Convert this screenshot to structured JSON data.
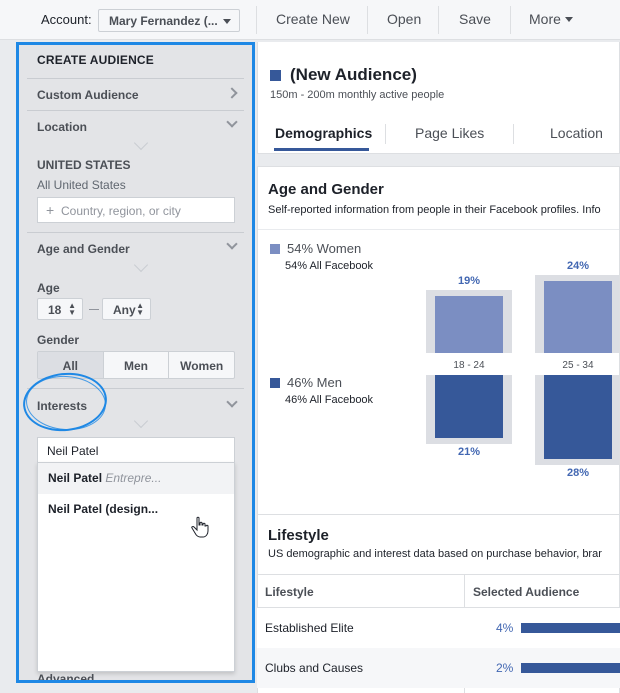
{
  "topbar": {
    "account_label": "Account:",
    "account_value": "Mary Fernandez (...",
    "create_new": "Create New",
    "open": "Open",
    "save": "Save",
    "more": "More"
  },
  "left_panel": {
    "title": "CREATE AUDIENCE",
    "custom_audience": "Custom Audience",
    "location_header": "Location",
    "country": "UNITED STATES",
    "country_sub": "All United States",
    "location_placeholder": "Country, region, or city",
    "age_gender_header": "Age and Gender",
    "age_label": "Age",
    "age_min": "18",
    "age_max": "Any",
    "gender_label": "Gender",
    "gender_options": [
      "All",
      "Men",
      "Women"
    ],
    "gender_selected": "All",
    "interests_header": "Interests",
    "interests_query": "Neil Patel",
    "suggestions": [
      {
        "name": "Neil Patel",
        "detail": "Entrepre...",
        "highlighted": true
      },
      {
        "name": "Neil Patel",
        "detail": "(design...",
        "highlighted": false
      }
    ],
    "advanced": "Advanced",
    "accent_color": "#1e88e5"
  },
  "audience": {
    "title": "(New Audience)",
    "subtitle": "150m - 200m monthly active people",
    "tabs": [
      "Demographics",
      "Page Likes",
      "Location"
    ],
    "active_tab": "Demographics"
  },
  "age_gender_section": {
    "title": "Age and Gender",
    "subtitle": "Self-reported information from people in their Facebook profiles. Info",
    "women": {
      "pct": "54% Women",
      "all_fb": "54% All Facebook",
      "color": "#7b8ec2"
    },
    "men": {
      "pct": "46% Men",
      "all_fb": "46% All Facebook",
      "color": "#365899"
    }
  },
  "chart_data": {
    "type": "bar",
    "categories": [
      "18 - 24",
      "25 - 34"
    ],
    "series": [
      {
        "name": "Women",
        "values": [
          19,
          24
        ],
        "labels": [
          "19%",
          "24%"
        ]
      },
      {
        "name": "Men",
        "values": [
          21,
          28
        ],
        "labels": [
          "21%",
          "28%"
        ]
      }
    ]
  },
  "lifestyle": {
    "title": "Lifestyle",
    "subtitle": "US demographic and interest data based on purchase behavior, brar",
    "col_lifestyle": "Lifestyle",
    "col_selected": "Selected Audience",
    "rows": [
      {
        "name": "Established Elite",
        "pct": "4%"
      },
      {
        "name": "Clubs and Causes",
        "pct": "2%"
      }
    ]
  }
}
